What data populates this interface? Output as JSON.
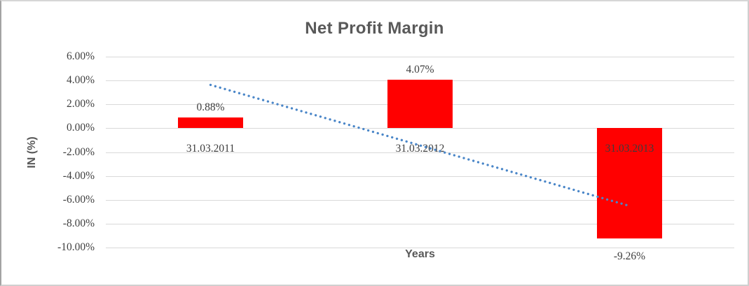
{
  "chart_data": {
    "type": "bar",
    "title": "Net Profit Margin",
    "xlabel": "Years",
    "ylabel": "IN (%)",
    "categories": [
      "31.03.2011",
      "31.03.2012",
      "31.03.2013"
    ],
    "values": [
      0.88,
      4.07,
      -9.26
    ],
    "data_labels": [
      "0.88%",
      "4.07%",
      "-9.26%"
    ],
    "ylim": [
      -10,
      6
    ],
    "yticks": [
      {
        "v": 6,
        "label": "6.00%"
      },
      {
        "v": 4,
        "label": "4.00%"
      },
      {
        "v": 2,
        "label": "2.00%"
      },
      {
        "v": 0,
        "label": "0.00%"
      },
      {
        "v": -2,
        "label": "-2.00%"
      },
      {
        "v": -4,
        "label": "-4.00%"
      },
      {
        "v": -6,
        "label": "-6.00%"
      },
      {
        "v": -8,
        "label": "-8.00%"
      },
      {
        "v": -10,
        "label": "-10.00%"
      }
    ],
    "grid": true,
    "legend": "none",
    "bar_color": "#ff0000",
    "gridline_color": "#d9d9d9",
    "title_color": "#595959",
    "label_color": "#3d3d3d",
    "trendline": {
      "type": "linear",
      "style": "dotted",
      "color": "#4a86c8",
      "points": [
        {
          "cat_index": 0,
          "value": 3.63
        },
        {
          "cat_index": 2,
          "value": -6.51
        }
      ]
    }
  }
}
